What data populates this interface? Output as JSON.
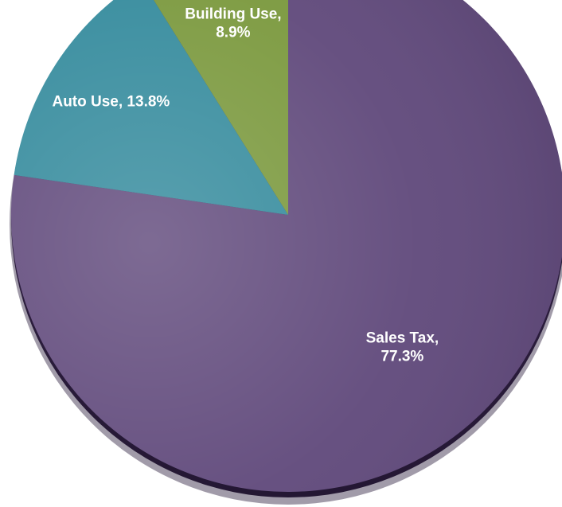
{
  "chart_data": {
    "type": "pie",
    "title": "",
    "start": "top",
    "direction": "clockwise",
    "legend": "none",
    "slices": [
      {
        "name": "Sales Tax",
        "value": 77.3,
        "label_lines": [
          "Sales Tax,",
          "77.3%"
        ],
        "color": "#614a7c"
      },
      {
        "name": "Auto Use",
        "value": 13.8,
        "label_lines": [
          "Auto Use, 13.8%"
        ],
        "color": "#358b9d"
      },
      {
        "name": "Building Use",
        "value": 8.9,
        "label_lines": [
          "Building Use,",
          "8.9%"
        ],
        "color": "#7b993e"
      }
    ]
  }
}
